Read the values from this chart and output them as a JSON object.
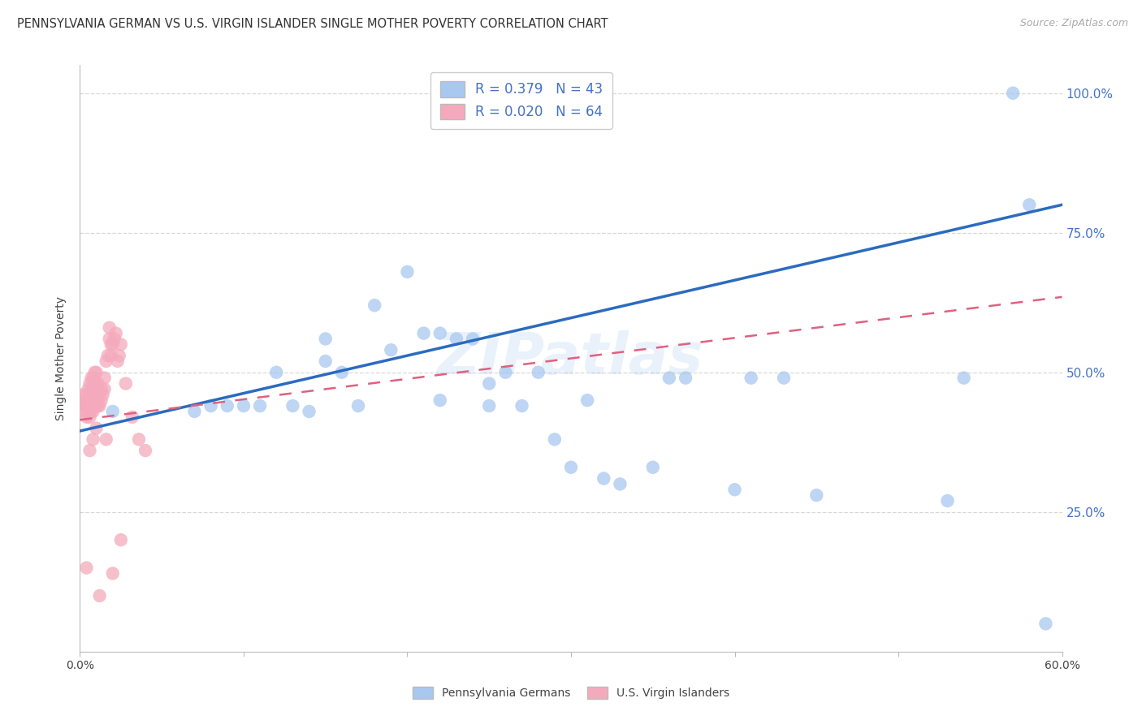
{
  "title": "PENNSYLVANIA GERMAN VS U.S. VIRGIN ISLANDER SINGLE MOTHER POVERTY CORRELATION CHART",
  "source": "Source: ZipAtlas.com",
  "ylabel": "Single Mother Poverty",
  "xlim": [
    0.0,
    0.6
  ],
  "ylim": [
    0.0,
    1.05
  ],
  "xticks": [
    0.0,
    0.1,
    0.2,
    0.3,
    0.4,
    0.5,
    0.6
  ],
  "xticklabels": [
    "0.0%",
    "",
    "",
    "",
    "",
    "",
    "60.0%"
  ],
  "ytick_positions": [
    0.25,
    0.5,
    0.75,
    1.0
  ],
  "ytick_labels": [
    "25.0%",
    "50.0%",
    "75.0%",
    "100.0%"
  ],
  "blue_R": "0.379",
  "blue_N": "43",
  "pink_R": "0.020",
  "pink_N": "64",
  "blue_color": "#A8C8F0",
  "pink_color": "#F4AABC",
  "blue_line_color": "#2B6BBF",
  "pink_line_color": "#E06080",
  "watermark_text": "ZIPatlas",
  "legend_label_blue": "Pennsylvania Germans",
  "legend_label_pink": "U.S. Virgin Islanders",
  "blue_scatter_x": [
    0.02,
    0.07,
    0.08,
    0.09,
    0.1,
    0.11,
    0.12,
    0.13,
    0.14,
    0.15,
    0.15,
    0.16,
    0.17,
    0.18,
    0.19,
    0.2,
    0.21,
    0.22,
    0.22,
    0.23,
    0.24,
    0.25,
    0.25,
    0.26,
    0.27,
    0.28,
    0.29,
    0.3,
    0.31,
    0.32,
    0.33,
    0.35,
    0.36,
    0.37,
    0.4,
    0.41,
    0.43,
    0.45,
    0.53,
    0.54,
    0.57,
    0.58,
    0.59
  ],
  "blue_scatter_y": [
    0.43,
    0.43,
    0.44,
    0.44,
    0.44,
    0.44,
    0.5,
    0.44,
    0.43,
    0.52,
    0.56,
    0.5,
    0.44,
    0.62,
    0.54,
    0.68,
    0.57,
    0.57,
    0.45,
    0.56,
    0.56,
    0.48,
    0.44,
    0.5,
    0.44,
    0.5,
    0.38,
    0.33,
    0.45,
    0.31,
    0.3,
    0.33,
    0.49,
    0.49,
    0.29,
    0.49,
    0.49,
    0.28,
    0.27,
    0.49,
    1.0,
    0.8,
    0.05
  ],
  "pink_scatter_x": [
    0.002,
    0.002,
    0.003,
    0.003,
    0.004,
    0.004,
    0.004,
    0.005,
    0.005,
    0.005,
    0.006,
    0.006,
    0.006,
    0.006,
    0.007,
    0.007,
    0.007,
    0.007,
    0.008,
    0.008,
    0.008,
    0.008,
    0.009,
    0.009,
    0.009,
    0.009,
    0.01,
    0.01,
    0.01,
    0.01,
    0.011,
    0.011,
    0.011,
    0.012,
    0.012,
    0.013,
    0.013,
    0.014,
    0.015,
    0.015,
    0.016,
    0.017,
    0.018,
    0.018,
    0.019,
    0.019,
    0.02,
    0.021,
    0.022,
    0.023,
    0.024,
    0.025,
    0.028,
    0.032,
    0.036,
    0.04,
    0.016,
    0.01,
    0.008,
    0.006,
    0.02,
    0.025,
    0.012,
    0.004
  ],
  "pink_scatter_y": [
    0.44,
    0.46,
    0.43,
    0.45,
    0.42,
    0.44,
    0.46,
    0.43,
    0.45,
    0.47,
    0.42,
    0.44,
    0.46,
    0.48,
    0.43,
    0.45,
    0.47,
    0.49,
    0.43,
    0.45,
    0.47,
    0.49,
    0.44,
    0.46,
    0.48,
    0.5,
    0.44,
    0.46,
    0.48,
    0.5,
    0.44,
    0.46,
    0.48,
    0.44,
    0.46,
    0.45,
    0.47,
    0.46,
    0.47,
    0.49,
    0.52,
    0.53,
    0.56,
    0.58,
    0.53,
    0.55,
    0.55,
    0.56,
    0.57,
    0.52,
    0.53,
    0.55,
    0.48,
    0.42,
    0.38,
    0.36,
    0.38,
    0.4,
    0.38,
    0.36,
    0.14,
    0.2,
    0.1,
    0.15
  ],
  "title_fontsize": 10.5,
  "source_fontsize": 9,
  "axis_label_fontsize": 10,
  "tick_fontsize": 10,
  "legend_fontsize": 12,
  "background_color": "#FFFFFF",
  "grid_color": "#D8D8D8"
}
